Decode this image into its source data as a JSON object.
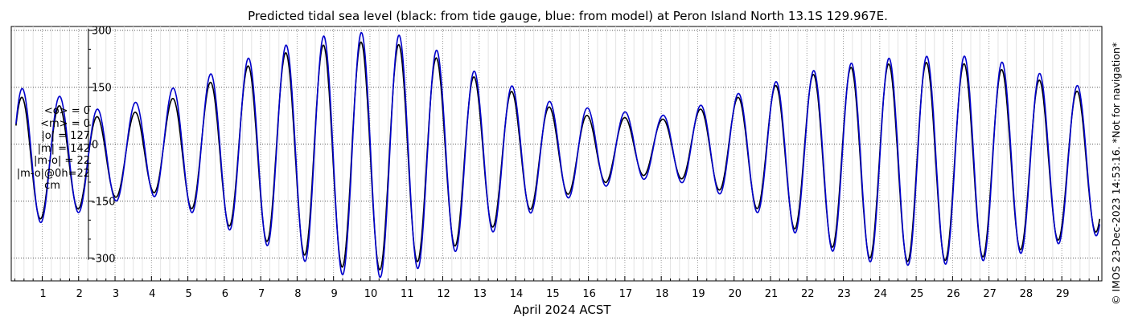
{
  "chart_data": {
    "type": "line",
    "title": "Predicted tidal sea level (black: from tide gauge, blue: from model) at Peron Island North 13.1S 129.967E.",
    "xlabel": "April 2024 ACST",
    "ylabel": "",
    "xlim": [
      0.15,
      30.1
    ],
    "ylim": [
      -360,
      310
    ],
    "yticks": [
      -300,
      -150,
      0,
      150,
      300
    ],
    "xticks": [
      1,
      2,
      3,
      4,
      5,
      6,
      7,
      8,
      9,
      10,
      11,
      12,
      13,
      14,
      15,
      16,
      17,
      18,
      19,
      20,
      21,
      22,
      23,
      24,
      25,
      26,
      27,
      28,
      29
    ],
    "grid": true,
    "series": [
      {
        "name": "black: from tide gauge",
        "color": "#000000"
      },
      {
        "name": "blue: from model",
        "color": "#0000cc"
      }
    ],
    "tidal_envelope": {
      "days": [
        0.2,
        1,
        2,
        3,
        4,
        5,
        6,
        7,
        8,
        9,
        10,
        11,
        12,
        13,
        14,
        15,
        16,
        17,
        18,
        19,
        20,
        21,
        22,
        23,
        24,
        25,
        26,
        27,
        28,
        29,
        30
      ],
      "high_blue": [
        145,
        150,
        100,
        85,
        130,
        160,
        200,
        240,
        270,
        290,
        295,
        285,
        240,
        185,
        150,
        110,
        95,
        85,
        75,
        100,
        130,
        160,
        190,
        210,
        225,
        230,
        235,
        225,
        200,
        165,
        140
      ],
      "low_blue": [
        -235,
        -205,
        -180,
        -150,
        -135,
        -175,
        -220,
        -260,
        -300,
        -340,
        -355,
        -340,
        -300,
        -250,
        -200,
        -155,
        -125,
        -95,
        -90,
        -110,
        -145,
        -200,
        -250,
        -295,
        -315,
        -320,
        -315,
        -305,
        -285,
        -260,
        -240
      ],
      "high_black": [
        125,
        120,
        80,
        65,
        100,
        135,
        180,
        220,
        250,
        265,
        270,
        260,
        220,
        170,
        135,
        95,
        75,
        70,
        65,
        90,
        120,
        150,
        180,
        200,
        210,
        215,
        215,
        205,
        180,
        150,
        125
      ],
      "low_black": [
        -225,
        -195,
        -170,
        -140,
        -125,
        -165,
        -210,
        -250,
        -285,
        -320,
        -335,
        -320,
        -285,
        -235,
        -190,
        -145,
        -115,
        -85,
        -80,
        -100,
        -135,
        -190,
        -240,
        -285,
        -305,
        -310,
        -305,
        -295,
        -275,
        -250,
        -230
      ]
    }
  },
  "stats": {
    "lines": [
      "<o> = 0",
      "<m> = 0",
      "|o| = 127",
      "|m| = 142",
      "|m-o| = 22",
      "|m-o|@0h=22"
    ],
    "unit": "cm"
  },
  "credit": "© IMOS 23-Dec-2023 14:53:16. *Not for navigation*"
}
